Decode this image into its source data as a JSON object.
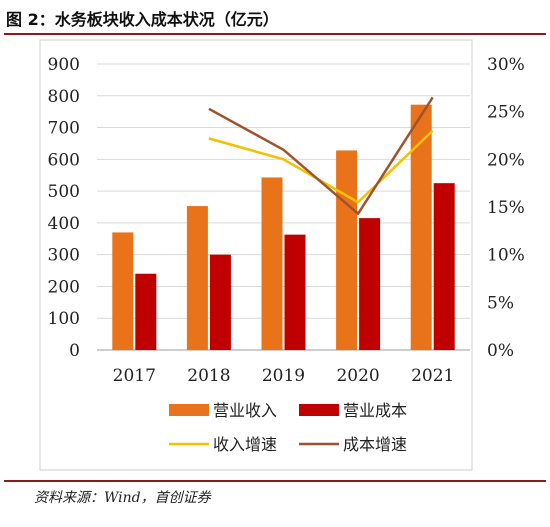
{
  "figure_title": "图 2：水务板块收入成本状况（亿元）",
  "source_note": "资料来源：Wind，首创证券",
  "colors": {
    "revenue": "#e8731a",
    "cost": "#c00000",
    "revenue_growth": "#f2c200",
    "cost_growth": "#a0522d",
    "rule": "#8b1a1a",
    "grid": "#d9d9d9"
  },
  "chart_data": {
    "type": "bar",
    "categories": [
      "2017",
      "2018",
      "2019",
      "2020",
      "2021"
    ],
    "series": [
      {
        "name": "营业收入",
        "type": "bar",
        "axis": "left",
        "color": "#e8731a",
        "values": [
          370,
          453,
          543,
          628,
          772
        ]
      },
      {
        "name": "营业成本",
        "type": "bar",
        "axis": "left",
        "color": "#c00000",
        "values": [
          240,
          300,
          363,
          415,
          525
        ]
      },
      {
        "name": "收入增速",
        "type": "line",
        "axis": "right",
        "color": "#f2c200",
        "values": [
          null,
          22.2,
          20.0,
          15.5,
          23.0
        ]
      },
      {
        "name": "成本增速",
        "type": "line",
        "axis": "right",
        "color": "#a0522d",
        "values": [
          null,
          25.3,
          21.0,
          14.3,
          26.5
        ]
      }
    ],
    "ylim": [
      0,
      900
    ],
    "y_ticks": [
      "0",
      "100",
      "200",
      "300",
      "400",
      "500",
      "600",
      "700",
      "800",
      "900"
    ],
    "y2lim": [
      0,
      30
    ],
    "y2_ticks": [
      "0%",
      "5%",
      "10%",
      "15%",
      "20%",
      "25%",
      "30%"
    ],
    "grid": true,
    "legend_position": "bottom",
    "legend": [
      "营业收入",
      "营业成本",
      "收入增速",
      "成本增速"
    ]
  }
}
